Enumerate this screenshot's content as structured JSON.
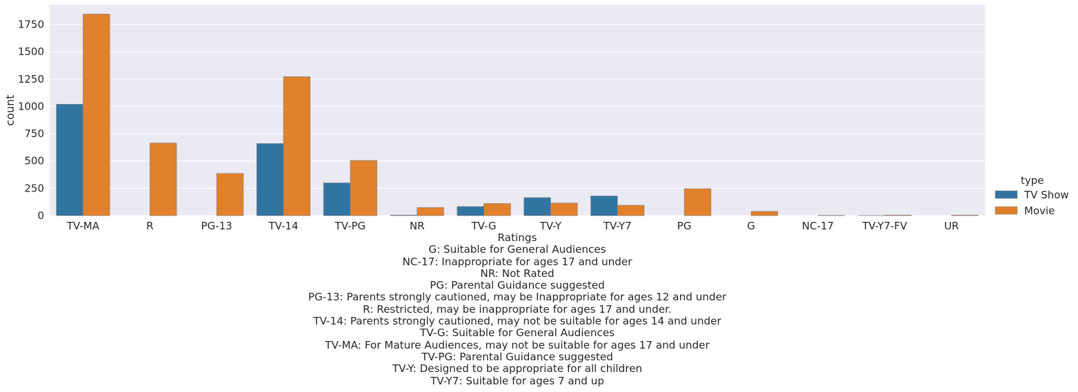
{
  "chart_data": {
    "type": "bar",
    "categories": [
      "TV-MA",
      "R",
      "PG-13",
      "TV-14",
      "TV-PG",
      "NR",
      "TV-G",
      "TV-Y",
      "TV-Y7",
      "PG",
      "G",
      "NC-17",
      "TV-Y7-FV",
      "UR"
    ],
    "series": [
      {
        "name": "TV Show",
        "color": "#3274a1",
        "values": [
          1020,
          0,
          0,
          660,
          300,
          5,
          83,
          165,
          180,
          0,
          0,
          0,
          1,
          0
        ]
      },
      {
        "name": "Movie",
        "color": "#e1812c",
        "values": [
          1845,
          665,
          386,
          1272,
          505,
          75,
          111,
          115,
          95,
          247,
          39,
          3,
          5,
          5
        ]
      }
    ],
    "ylim": [
      0,
      1930
    ],
    "yticks": [
      0,
      250,
      500,
      750,
      1000,
      1250,
      1500,
      1750
    ],
    "ylabel": "count",
    "xlabel": "Ratings",
    "legend_title": "type",
    "legend_position": "right",
    "grid": true,
    "style": {
      "background": "#eaeaf2",
      "grid_color": "#ffffff"
    }
  },
  "xlabel_notes": [
    "G: Suitable for General Audiences",
    "NC-17: Inappropriate for ages 17 and under",
    "NR: Not Rated",
    "PG: Parental Guidance suggested",
    "PG-13: Parents strongly cautioned, may be Inappropriate for ages 12 and under",
    "R: Restricted, may be inappropriate for ages 17 and under.",
    "TV-14: Parents strongly cautioned, may not be suitable for ages 14 and under",
    "TV-G: Suitable for General Audiences",
    "TV-MA: For Mature Audiences, may not be suitable for ages 17 and under",
    "TV-PG: Parental Guidance suggested",
    "TV-Y: Designed to be appropriate for all children",
    "TV-Y7: Suitable for ages 7 and up"
  ]
}
